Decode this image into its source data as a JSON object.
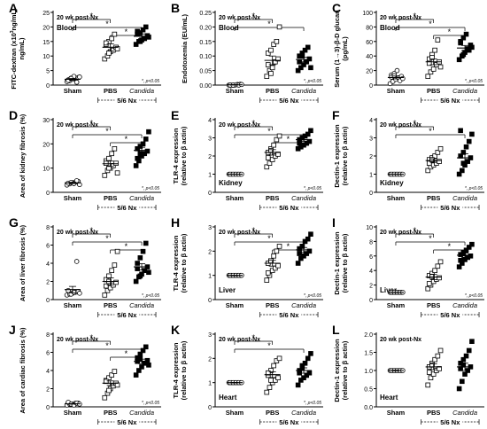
{
  "chart_data": [
    {
      "letter": "A",
      "type": "scatter",
      "timepoint": "20 wk post-Nx",
      "tissue": "Blood",
      "ylabel": [
        "FITC-dextran (x10",
        "ng/mL)"
      ],
      "ylabel_sup": "3",
      "ylim": [
        0,
        25
      ],
      "yticks": [
        0,
        5,
        10,
        15,
        20,
        25
      ],
      "categories": [
        "Sham",
        "PBS",
        "Candida"
      ],
      "group_label": "5/6 Nx",
      "pnote": "*, p<0.05",
      "sig": [
        {
          "from": 0,
          "to": 1
        },
        {
          "from": 0,
          "to": 2
        },
        {
          "from": 1,
          "to": 2
        }
      ],
      "series": [
        {
          "values": [
            1.2,
            1.5,
            2.0,
            2.2,
            2.6,
            1.8,
            2.4,
            3.0,
            1.0,
            2.8,
            1.6,
            2.3
          ],
          "mean": 2.0,
          "sem": 0.3
        },
        {
          "values": [
            9,
            10,
            11.5,
            12,
            13,
            14,
            15,
            16,
            17.5,
            12.5,
            14.5,
            11
          ],
          "mean": 13.0,
          "sem": 1.2
        },
        {
          "values": [
            14,
            15,
            15.5,
            16,
            17,
            17.5,
            18,
            19,
            20,
            16.5,
            18.5,
            15
          ],
          "mean": 16.8,
          "sem": 0.8
        }
      ],
      "marker": [
        "circle",
        "square",
        "square-filled"
      ]
    },
    {
      "letter": "B",
      "type": "scatter",
      "timepoint": "20 wk post-Nx",
      "tissue": "Blood",
      "ylabel": [
        "Endotoxemia (EU/mL)"
      ],
      "ylim": [
        0,
        0.25
      ],
      "yticks": [
        0,
        0.05,
        0.1,
        0.15,
        0.2,
        0.25
      ],
      "categories": [
        "Sham",
        "PBS",
        "Candida"
      ],
      "group_label": "5/6 Nx",
      "pnote": "*, p<0.05",
      "sig": [
        {
          "from": 0,
          "to": 1
        },
        {
          "from": 0,
          "to": 2
        }
      ],
      "series": [
        {
          "values": [
            0,
            0,
            0,
            0.002,
            0.003,
            0,
            0,
            0.001,
            0,
            0.002,
            0,
            0
          ],
          "mean": 0.001,
          "sem": 0.001
        },
        {
          "values": [
            0.03,
            0.05,
            0.06,
            0.08,
            0.09,
            0.11,
            0.12,
            0.14,
            0.15,
            0.2,
            0.07,
            0.04
          ],
          "mean": 0.085,
          "sem": 0.015
        },
        {
          "values": [
            0.05,
            0.06,
            0.07,
            0.08,
            0.09,
            0.1,
            0.11,
            0.12,
            0.13,
            0.06,
            0.08,
            0.1
          ],
          "mean": 0.088,
          "sem": 0.008
        }
      ],
      "marker": [
        "circle",
        "square",
        "square-filled"
      ]
    },
    {
      "letter": "C",
      "type": "scatter",
      "timepoint": "20 wk post-Nx",
      "tissue": "Blood",
      "ylabel": [
        "Serum (1→3)-β-D glucan",
        "(pg/mL)"
      ],
      "ylim": [
        0,
        100
      ],
      "yticks": [
        0,
        20,
        40,
        60,
        80,
        100
      ],
      "categories": [
        "Sham",
        "PBS",
        "Candida"
      ],
      "group_label": "5/6 Nx",
      "pnote": "*, p<0.05",
      "sig": [
        {
          "from": 0,
          "to": 1
        },
        {
          "from": 0,
          "to": 2
        },
        {
          "from": 1,
          "to": 2
        }
      ],
      "series": [
        {
          "values": [
            2,
            5,
            8,
            10,
            12,
            14,
            16,
            20,
            6,
            9,
            11,
            13
          ],
          "mean": 10.5,
          "sem": 2
        },
        {
          "values": [
            12,
            18,
            22,
            28,
            32,
            36,
            42,
            48,
            62,
            25,
            30,
            38
          ],
          "mean": 32,
          "sem": 4
        },
        {
          "values": [
            35,
            40,
            45,
            50,
            55,
            60,
            65,
            70,
            48,
            52,
            58,
            42
          ],
          "mean": 51,
          "sem": 3.5
        }
      ],
      "marker": [
        "circle",
        "square",
        "square-filled"
      ]
    },
    {
      "letter": "D",
      "type": "scatter",
      "timepoint": "20 wk post-Nx",
      "tissue": "",
      "ylabel": [
        "Area of kidney fibrosis (%)"
      ],
      "ylim": [
        0,
        30
      ],
      "yticks": [
        0,
        10,
        20,
        30
      ],
      "categories": [
        "Sham",
        "PBS",
        "Candida"
      ],
      "group_label": "5/6 Nx",
      "pnote": "*, p<0.05",
      "sig": [
        {
          "from": 0,
          "to": 1
        },
        {
          "from": 0,
          "to": 2
        },
        {
          "from": 1,
          "to": 2
        }
      ],
      "series": [
        {
          "values": [
            3,
            3.5,
            4,
            4.2,
            4.5,
            3.8,
            4.1,
            3.6,
            4.8,
            3.2
          ],
          "mean": 3.9,
          "sem": 0.3
        },
        {
          "values": [
            7,
            9,
            10,
            11,
            12,
            13,
            14,
            16,
            18,
            8,
            12,
            10
          ],
          "mean": 11.8,
          "sem": 1.1
        },
        {
          "values": [
            11,
            13,
            15,
            16,
            17,
            18,
            19,
            20,
            22,
            25,
            14,
            16
          ],
          "mean": 17.3,
          "sem": 1.3
        }
      ],
      "marker": [
        "circle",
        "square",
        "square-filled"
      ]
    },
    {
      "letter": "E",
      "type": "scatter",
      "timepoint": "20 wk post-Nx",
      "tissue": "Kidney",
      "ylabel": [
        "TLR-4 expression",
        "(relative to β actin)"
      ],
      "ylim": [
        0,
        4
      ],
      "yticks": [
        0,
        1,
        2,
        3,
        4
      ],
      "categories": [
        "Sham",
        "PBS",
        "Candida"
      ],
      "group_label": "5/6 Nx",
      "pnote": "*, p<0.05",
      "sig": [
        {
          "from": 0,
          "to": 1
        },
        {
          "from": 0,
          "to": 2
        },
        {
          "from": 1,
          "to": 2
        }
      ],
      "series": [
        {
          "values": [
            1,
            1,
            1,
            1,
            1,
            1,
            1,
            1,
            1,
            1
          ],
          "mean": 1,
          "sem": 0.01
        },
        {
          "values": [
            1.4,
            1.6,
            1.8,
            2.0,
            2.1,
            2.2,
            2.4,
            2.6,
            2.9,
            3.1,
            1.9,
            2.3
          ],
          "mean": 2.2,
          "sem": 0.15
        },
        {
          "values": [
            2.4,
            2.5,
            2.6,
            2.7,
            2.8,
            2.9,
            3.0,
            3.1,
            3.2,
            3.4,
            2.7,
            3.0
          ],
          "mean": 2.9,
          "sem": 0.09
        }
      ],
      "marker": [
        "circle",
        "square",
        "square-filled"
      ]
    },
    {
      "letter": "F",
      "type": "scatter",
      "timepoint": "20 wk post-Nx",
      "tissue": "Kidney",
      "ylabel": [
        "Dectin-1 expression",
        "(relative to β actin)"
      ],
      "ylim": [
        0,
        4
      ],
      "yticks": [
        0,
        1,
        2,
        3,
        4
      ],
      "categories": [
        "Sham",
        "PBS",
        "Candida"
      ],
      "group_label": "5/6 Nx",
      "pnote": "*, p<0.05",
      "sig": [
        {
          "from": 0,
          "to": 1
        },
        {
          "from": 0,
          "to": 2
        }
      ],
      "series": [
        {
          "values": [
            1,
            1,
            1,
            1,
            1,
            1,
            1,
            1,
            1,
            1
          ],
          "mean": 1,
          "sem": 0.01
        },
        {
          "values": [
            1.2,
            1.4,
            1.5,
            1.6,
            1.7,
            1.8,
            1.9,
            2.0,
            2.2,
            2.4,
            1.6,
            1.8
          ],
          "mean": 1.75,
          "sem": 0.1
        },
        {
          "values": [
            1.0,
            1.2,
            1.5,
            1.7,
            1.9,
            2.0,
            2.2,
            2.5,
            2.8,
            3.2,
            3.4,
            1.6
          ],
          "mean": 1.9,
          "sem": 0.22
        }
      ],
      "marker": [
        "circle",
        "square",
        "square-filled"
      ]
    },
    {
      "letter": "G",
      "type": "scatter",
      "timepoint": "20 wk post-Nx",
      "tissue": "",
      "ylabel": [
        "Area of liver fibrosis (%)"
      ],
      "ylim": [
        0,
        8
      ],
      "yticks": [
        0,
        2,
        4,
        6,
        8
      ],
      "categories": [
        "Sham",
        "PBS",
        "Candida"
      ],
      "group_label": "5/6 Nx",
      "pnote": "*, p<0.05",
      "sig": [
        {
          "from": 0,
          "to": 1
        },
        {
          "from": 0,
          "to": 2
        },
        {
          "from": 1,
          "to": 2
        }
      ],
      "series": [
        {
          "values": [
            0.5,
            0.6,
            0.7,
            0.8,
            0.9,
            1.0,
            0.6,
            0.8,
            4.2,
            0.7
          ],
          "mean": 1.1,
          "sem": 0.35
        },
        {
          "values": [
            0.5,
            1.0,
            1.3,
            1.6,
            1.9,
            2.2,
            2.6,
            3.2,
            3.8,
            5.3,
            1.5,
            2.0
          ],
          "mean": 2.0,
          "sem": 0.4
        },
        {
          "values": [
            2.0,
            2.5,
            2.8,
            3.2,
            3.6,
            4.0,
            4.6,
            5.3,
            6.2,
            3.0,
            3.4,
            2.6
          ],
          "mean": 3.6,
          "sem": 0.35
        }
      ],
      "marker": [
        "circle",
        "square",
        "square-filled"
      ]
    },
    {
      "letter": "H",
      "type": "scatter",
      "timepoint": "20 wk post-Nx",
      "tissue": "Liver",
      "ylabel": [
        "TLR-4 expression",
        "(relative to β actin)"
      ],
      "ylim": [
        0,
        3
      ],
      "yticks": [
        0,
        1,
        2,
        3
      ],
      "categories": [
        "Sham",
        "PBS",
        "Candida"
      ],
      "group_label": "5/6 Nx",
      "pnote": "*, p<0.05",
      "sig": [
        {
          "from": 0,
          "to": 1
        },
        {
          "from": 0,
          "to": 2
        },
        {
          "from": 1,
          "to": 2
        }
      ],
      "series": [
        {
          "values": [
            1,
            1,
            1,
            1,
            1,
            1,
            1,
            1,
            1,
            1
          ],
          "mean": 1,
          "sem": 0.01
        },
        {
          "values": [
            0.8,
            1.0,
            1.2,
            1.3,
            1.4,
            1.5,
            1.6,
            1.8,
            2.0,
            2.2,
            1.1,
            1.6
          ],
          "mean": 1.5,
          "sem": 0.12
        },
        {
          "values": [
            1.5,
            1.7,
            1.8,
            1.9,
            2.0,
            2.1,
            2.2,
            2.4,
            2.5,
            2.7,
            1.9,
            2.2
          ],
          "mean": 2.05,
          "sem": 0.1
        }
      ],
      "marker": [
        "circle",
        "square",
        "square-filled"
      ]
    },
    {
      "letter": "I",
      "type": "scatter",
      "timepoint": "20 wk post-Nx",
      "tissue": "Liver",
      "ylabel": [
        "Dectin-1 expression",
        "(relative to β actin)"
      ],
      "ylim": [
        0,
        10
      ],
      "yticks": [
        0,
        2,
        4,
        6,
        8,
        10
      ],
      "categories": [
        "Sham",
        "PBS",
        "Candida"
      ],
      "group_label": "5/6 Nx",
      "pnote": "*, p<0.05",
      "sig": [
        {
          "from": 0,
          "to": 1
        },
        {
          "from": 0,
          "to": 2
        },
        {
          "from": 1,
          "to": 2
        }
      ],
      "series": [
        {
          "values": [
            1,
            1,
            1,
            1,
            1,
            1,
            1,
            1,
            1,
            1
          ],
          "mean": 1,
          "sem": 0.01
        },
        {
          "values": [
            1.5,
            2.0,
            2.5,
            2.8,
            3.0,
            3.3,
            3.6,
            4.0,
            4.6,
            5.2,
            2.2,
            3.2
          ],
          "mean": 3.1,
          "sem": 0.35
        },
        {
          "values": [
            4.5,
            5.0,
            5.5,
            5.8,
            6.0,
            6.2,
            6.5,
            6.8,
            7.2,
            7.6,
            5.4,
            6.3
          ],
          "mean": 6.1,
          "sem": 0.3
        }
      ],
      "marker": [
        "circle",
        "square",
        "square-filled"
      ]
    },
    {
      "letter": "J",
      "type": "scatter",
      "timepoint": "20 wk post-Nx",
      "tissue": "",
      "ylabel": [
        "Area of cardiac fibrosis (%)"
      ],
      "ylim": [
        0,
        8
      ],
      "yticks": [
        0,
        2,
        4,
        6,
        8
      ],
      "categories": [
        "Sham",
        "PBS",
        "Candida"
      ],
      "group_label": "5/6 Nx",
      "pnote": "*, p<0.05",
      "sig": [
        {
          "from": 0,
          "to": 1
        },
        {
          "from": 0,
          "to": 2
        },
        {
          "from": 1,
          "to": 2
        }
      ],
      "series": [
        {
          "values": [
            0.2,
            0.3,
            0.3,
            0.4,
            0.4,
            0.5,
            0.3,
            0.2,
            0.4,
            0.3
          ],
          "mean": 0.33,
          "sem": 0.03
        },
        {
          "values": [
            1.0,
            1.5,
            2.0,
            2.3,
            2.6,
            2.9,
            3.2,
            3.5,
            3.9,
            2.4,
            2.8,
            1.8
          ],
          "mean": 2.6,
          "sem": 0.25
        },
        {
          "values": [
            3.5,
            4.0,
            4.4,
            4.8,
            5.1,
            5.4,
            5.8,
            6.2,
            6.6,
            4.6,
            5.0,
            5.3
          ],
          "mean": 5.0,
          "sem": 0.25
        }
      ],
      "marker": [
        "circle",
        "square",
        "square-filled"
      ]
    },
    {
      "letter": "K",
      "type": "scatter",
      "timepoint": "20 wk post-Nx",
      "tissue": "Heart",
      "ylabel": [
        "TLR-4 expression",
        "(relative to β actin)"
      ],
      "ylim": [
        0,
        3
      ],
      "yticks": [
        0,
        1,
        2,
        3
      ],
      "categories": [
        "Sham",
        "PBS",
        "Candida"
      ],
      "group_label": "5/6 Nx",
      "pnote": "*, p<0.05",
      "sig": [
        {
          "from": 0,
          "to": 1
        },
        {
          "from": 0,
          "to": 2
        }
      ],
      "series": [
        {
          "values": [
            1,
            1,
            1,
            1,
            1,
            1,
            1,
            1,
            1,
            1
          ],
          "mean": 1,
          "sem": 0.01
        },
        {
          "values": [
            0.6,
            0.8,
            1.0,
            1.1,
            1.2,
            1.3,
            1.5,
            1.7,
            1.9,
            2.0,
            1.4,
            1.1
          ],
          "mean": 1.33,
          "sem": 0.12
        },
        {
          "values": [
            0.9,
            1.1,
            1.2,
            1.3,
            1.4,
            1.5,
            1.6,
            1.8,
            2.0,
            2.2,
            1.4,
            1.7
          ],
          "mean": 1.5,
          "sem": 0.11
        }
      ],
      "marker": [
        "circle",
        "square",
        "square-filled"
      ]
    },
    {
      "letter": "L",
      "type": "scatter",
      "timepoint": "20 wk post-Nx",
      "tissue": "Heart",
      "ylabel": [
        "Dectin-1 expression",
        "(relative to β actin)"
      ],
      "ylim": [
        0,
        2.0
      ],
      "yticks": [
        0,
        0.5,
        1.0,
        1.5,
        2.0
      ],
      "categories": [
        "Sham",
        "PBS",
        "Candida"
      ],
      "group_label": "5/6 Nx",
      "pnote": "",
      "sig": [],
      "series": [
        {
          "values": [
            1,
            1,
            1,
            1,
            1,
            1,
            1,
            1,
            1,
            1
          ],
          "mean": 1,
          "sem": 0.01
        },
        {
          "values": [
            0.6,
            0.8,
            0.9,
            1.0,
            1.05,
            1.1,
            1.2,
            1.3,
            1.4,
            1.55,
            0.95,
            1.15
          ],
          "mean": 1.1,
          "sem": 0.08
        },
        {
          "values": [
            0.5,
            0.7,
            0.9,
            1.0,
            1.1,
            1.2,
            1.3,
            1.4,
            1.55,
            1.8,
            1.05,
            1.15
          ],
          "mean": 1.1,
          "sem": 0.1
        }
      ],
      "marker": [
        "circle",
        "square",
        "square-filled"
      ]
    }
  ]
}
